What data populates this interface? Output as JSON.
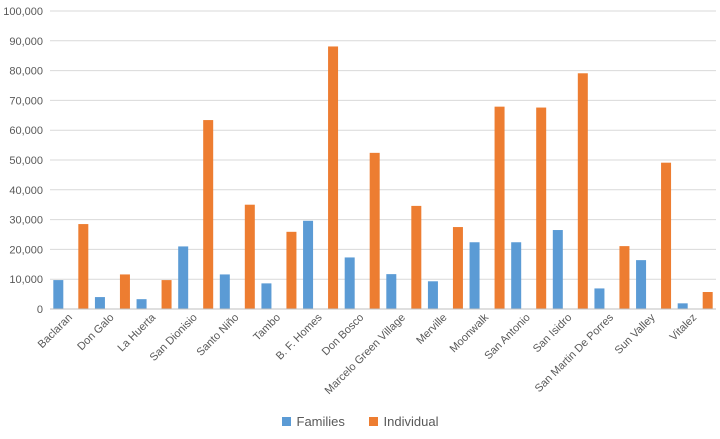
{
  "chart_data": {
    "type": "bar",
    "categories": [
      "Baclaran",
      "Don Galo",
      "La Huerta",
      "San Dionisio",
      "Santo Niño",
      "Tambo",
      "B. F. Homes",
      "Don Bosco",
      "Marcelo Green Village",
      "Merville",
      "Moonwalk",
      "San Antonio",
      "San Isidro",
      "San Martin De Porres",
      "Sun Valley",
      "Vitalez"
    ],
    "series": [
      {
        "name": "Families",
        "color": "#5B9BD5",
        "values": [
          9700,
          4000,
          3300,
          21000,
          11600,
          8600,
          29600,
          17300,
          11700,
          9300,
          22400,
          22400,
          26500,
          6900,
          16400,
          1900
        ]
      },
      {
        "name": "Individual",
        "color": "#ED7D31",
        "values": [
          28500,
          11600,
          9700,
          63400,
          35000,
          25900,
          88100,
          52400,
          34600,
          27500,
          67900,
          67600,
          79100,
          21100,
          49100,
          5700
        ]
      }
    ],
    "ylim": [
      0,
      100000
    ],
    "yticks": [
      "0",
      "10,000",
      "20,000",
      "30,000",
      "40,000",
      "50,000",
      "60,000",
      "70,000",
      "80,000",
      "90,000",
      "100,000"
    ],
    "grid": true,
    "legend_position": "bottom"
  }
}
